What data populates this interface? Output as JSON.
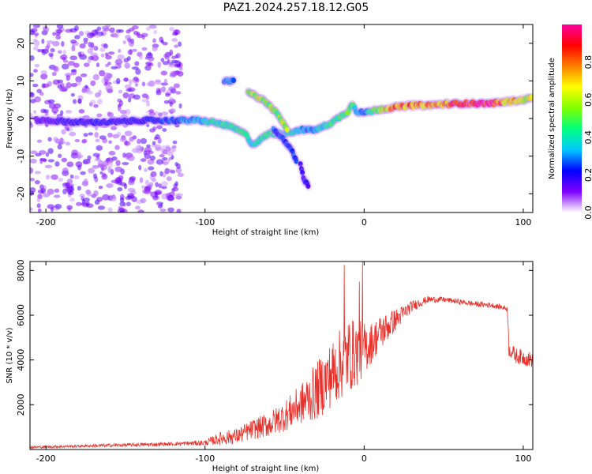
{
  "title": "PAZ1.2024.257.18.12.G05",
  "chart_data": [
    {
      "type": "heatmap",
      "xlabel": "Height of straight line (km)",
      "ylabel": "Frequency (Hz)",
      "xlim": [
        -210,
        106
      ],
      "ylim": [
        -25,
        25
      ],
      "xticks": [
        -200,
        -100,
        0,
        100
      ],
      "yticks": [
        -20,
        -10,
        0,
        10,
        20
      ],
      "colorbar": {
        "label": "Normalized spectral amplitude",
        "ticks": [
          "0.0",
          "0.2",
          "0.4",
          "0.6",
          "0.8"
        ],
        "range": [
          0,
          1
        ],
        "colormap": [
          "#ffffff",
          "#8000ff",
          "#0000ff",
          "#00c8ff",
          "#00ff80",
          "#80ff00",
          "#ffff00",
          "#ff8000",
          "#ff0000",
          "#ff00a0"
        ]
      },
      "ridge": {
        "x": [
          -200,
          -180,
          -160,
          -140,
          -120,
          -105,
          -95,
          -85,
          -75,
          -70,
          -60,
          -50,
          -40,
          -35,
          -30,
          -20,
          -15,
          -10,
          -7,
          -5,
          0,
          10,
          20,
          30,
          40,
          50,
          60,
          70,
          80,
          90,
          100,
          106
        ],
        "y": [
          -0.5,
          -1,
          -1,
          -0.5,
          -0.5,
          -0.5,
          -1,
          -2,
          -4,
          -7,
          -4,
          -4,
          -3,
          -3,
          -3,
          -1,
          0.5,
          2,
          4,
          2,
          1.5,
          2.5,
          3,
          3.5,
          3.5,
          3.8,
          4,
          4,
          4,
          4.5,
          5,
          5.5
        ],
        "amplitude": [
          0.15,
          0.2,
          0.2,
          0.2,
          0.25,
          0.35,
          0.4,
          0.45,
          0.45,
          0.35,
          0.45,
          0.4,
          0.35,
          0.3,
          0.35,
          0.45,
          0.45,
          0.5,
          0.45,
          0.35,
          0.3,
          0.6,
          0.8,
          0.8,
          0.75,
          0.75,
          0.9,
          0.95,
          0.95,
          0.75,
          0.65,
          0.6
        ]
      },
      "branches": [
        {
          "x": [
            -88,
            -82
          ],
          "y": [
            10,
            10
          ],
          "amplitude": 0.3
        },
        {
          "x": [
            -73,
            -64,
            -56,
            -48
          ],
          "y": [
            7,
            5,
            2,
            -3
          ],
          "amplitude": 0.55
        },
        {
          "x": [
            -57,
            -52,
            -46,
            -42
          ],
          "y": [
            -3,
            -5,
            -8,
            -12
          ],
          "amplitude": 0.25
        },
        {
          "x": [
            -40,
            -38,
            -35
          ],
          "y": [
            -12,
            -16,
            -18
          ],
          "amplitude": 0.2
        }
      ]
    },
    {
      "type": "line",
      "xlabel": "Height of straight line (km)",
      "ylabel": "SNR (10 * v/v)",
      "xlim": [
        -210,
        106
      ],
      "ylim": [
        0,
        8400
      ],
      "xticks": [
        -200,
        -100,
        0,
        100
      ],
      "yticks": [
        2000,
        4000,
        6000,
        8000
      ],
      "color": "#e8302a",
      "envelope": {
        "x": [
          -210,
          -180,
          -150,
          -120,
          -100,
          -90,
          -80,
          -70,
          -60,
          -50,
          -40,
          -30,
          -20,
          -15,
          -10,
          -5,
          0,
          5,
          10,
          20,
          30,
          40,
          50,
          60,
          70,
          80,
          90,
          91,
          95,
          100,
          106
        ],
        "y": [
          100,
          150,
          200,
          250,
          300,
          500,
          600,
          900,
          1100,
          1500,
          2000,
          2600,
          3400,
          3800,
          4200,
          4300,
          4500,
          4800,
          5200,
          5800,
          6400,
          6700,
          6700,
          6600,
          6500,
          6450,
          6300,
          4500,
          4200,
          4100,
          4000
        ],
        "noise": [
          60,
          60,
          80,
          80,
          120,
          300,
          350,
          450,
          550,
          700,
          900,
          1300,
          1500,
          1600,
          1700,
          1500,
          1200,
          900,
          800,
          500,
          250,
          150,
          120,
          120,
          120,
          120,
          120,
          350,
          350,
          350,
          350
        ]
      },
      "spikes": [
        {
          "x": -12.5,
          "y": 8250
        },
        {
          "x": -1,
          "y": 8400
        },
        {
          "x": -3,
          "y": 7500
        }
      ]
    }
  ]
}
